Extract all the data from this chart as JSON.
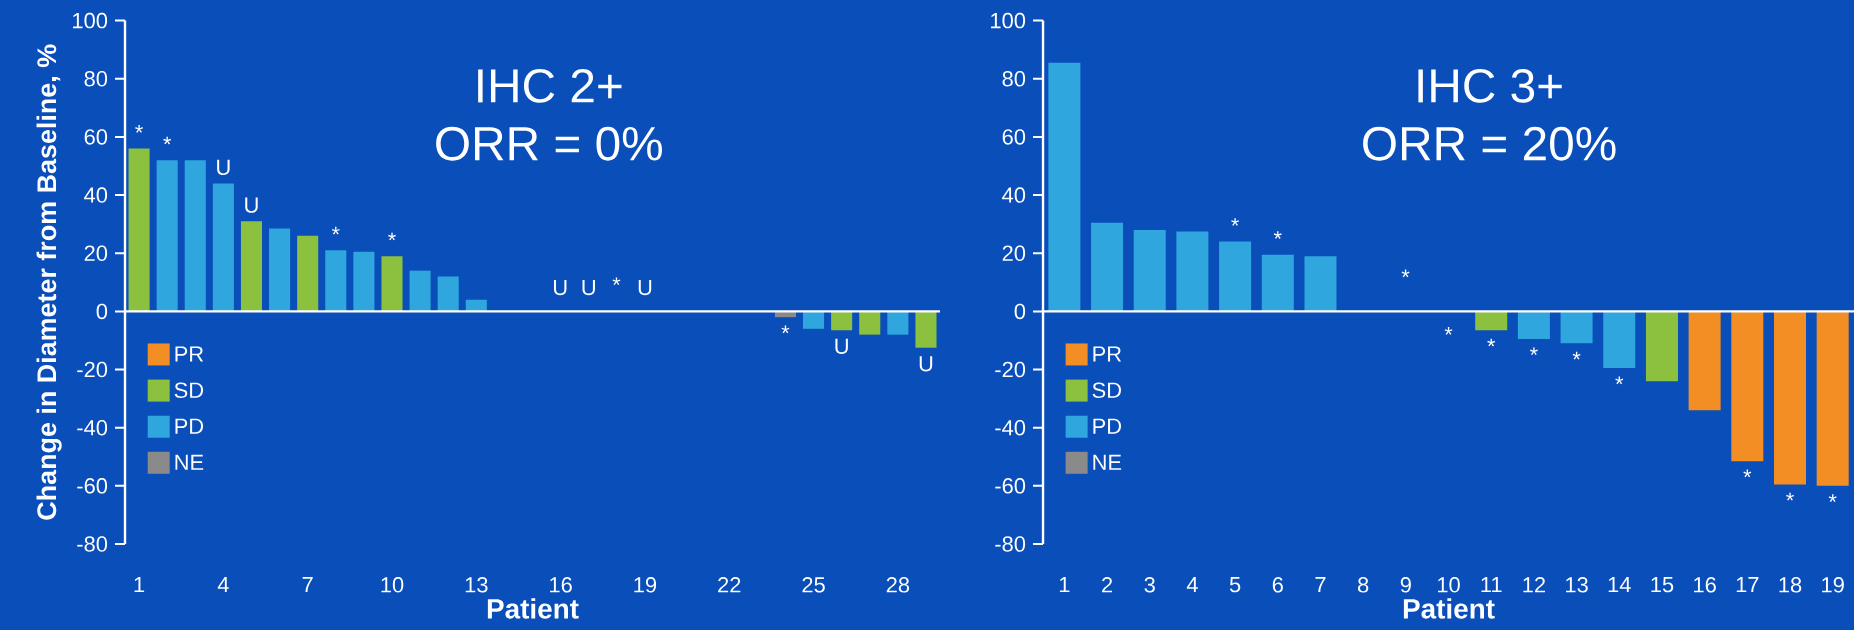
{
  "chart_data": [
    {
      "type": "bar",
      "title": "IHC 2+",
      "subtitle": "ORR = 0%",
      "xlabel": "Patient",
      "ylabel": "Change in Diameter from Baseline, %",
      "x": [
        1,
        2,
        3,
        4,
        5,
        6,
        7,
        8,
        9,
        10,
        11,
        12,
        13,
        14,
        15,
        16,
        17,
        18,
        19,
        20,
        21,
        22,
        23,
        24,
        25,
        26,
        27,
        28,
        29
      ],
      "xlim": [
        0.5,
        29.5
      ],
      "xticks": [
        1,
        4,
        7,
        10,
        13,
        16,
        19,
        22,
        25,
        28
      ],
      "ylim": [
        -80,
        100
      ],
      "yticks": [
        -80,
        -60,
        -40,
        -20,
        0,
        20,
        40,
        60,
        80,
        100
      ],
      "legend": "bottom left",
      "series": [
        {
          "name": "PR",
          "color": "#f28e24",
          "values": [
            null,
            null,
            null,
            null,
            null,
            null,
            null,
            null,
            null,
            null,
            null,
            null,
            null,
            null,
            null,
            null,
            null,
            null,
            null,
            null,
            null,
            null,
            null,
            null,
            null,
            null,
            null,
            null,
            null
          ]
        },
        {
          "name": "SD",
          "color": "#8bc13f",
          "values": [
            56,
            null,
            null,
            null,
            31,
            null,
            26,
            null,
            null,
            19,
            null,
            null,
            null,
            null,
            null,
            null,
            null,
            null,
            null,
            null,
            null,
            null,
            null,
            null,
            null,
            -6.5,
            -8,
            null,
            -12.5
          ]
        },
        {
          "name": "PD",
          "color": "#2fa6de",
          "values": [
            null,
            52,
            52,
            44,
            null,
            28.5,
            null,
            21,
            20.5,
            null,
            14,
            12,
            4,
            null,
            null,
            null,
            null,
            null,
            null,
            null,
            null,
            null,
            null,
            null,
            -6,
            null,
            null,
            -8,
            null
          ]
        },
        {
          "name": "NE",
          "color": "#8a8a8a",
          "values": [
            null,
            null,
            null,
            null,
            null,
            null,
            null,
            null,
            null,
            null,
            null,
            null,
            null,
            null,
            null,
            null,
            null,
            null,
            null,
            null,
            null,
            null,
            null,
            -2,
            null,
            null,
            null,
            null,
            null
          ]
        }
      ],
      "annotations": [
        {
          "text": "*",
          "x": 1,
          "y": 56
        },
        {
          "text": "*",
          "x": 2,
          "y": 52
        },
        {
          "text": "U",
          "x": 4,
          "y": 44
        },
        {
          "text": "U",
          "x": 5,
          "y": 31
        },
        {
          "text": "*",
          "x": 8,
          "y": 21
        },
        {
          "text": "*",
          "x": 10,
          "y": 19
        },
        "U",
        "U",
        "*",
        "U",
        {
          "text": "*",
          "x": 24,
          "y": -2
        },
        {
          "text": "U",
          "x": 26,
          "y": -6.5
        },
        {
          "text": "U",
          "x": 29,
          "y": -12.5
        }
      ]
    },
    {
      "type": "bar",
      "title": "IHC 3+",
      "subtitle": "ORR = 20%",
      "xlabel": "Patient",
      "x": [
        1,
        2,
        3,
        4,
        5,
        6,
        7,
        8,
        9,
        10,
        11,
        12,
        13,
        14,
        15,
        16,
        17,
        18,
        19
      ],
      "xlim": [
        0.5,
        19.5
      ],
      "xticks": [
        1,
        2,
        3,
        4,
        5,
        6,
        7,
        8,
        9,
        10,
        11,
        12,
        13,
        14,
        15,
        16,
        17,
        18,
        19
      ],
      "ylim": [
        -80,
        100
      ],
      "yticks": [
        -80,
        -60,
        -40,
        -20,
        0,
        20,
        40,
        60,
        80,
        100
      ],
      "legend": "bottom left",
      "series": [
        {
          "name": "PR",
          "color": "#f28e24",
          "values": [
            null,
            null,
            null,
            null,
            null,
            null,
            null,
            null,
            null,
            null,
            null,
            null,
            null,
            null,
            null,
            -34,
            -51.5,
            -59.5,
            -60
          ]
        },
        {
          "name": "SD",
          "color": "#8bc13f",
          "values": [
            null,
            null,
            null,
            null,
            null,
            null,
            null,
            null,
            null,
            null,
            -6.5,
            null,
            null,
            null,
            -24,
            null,
            null,
            null,
            null
          ]
        },
        {
          "name": "PD",
          "color": "#2fa6de",
          "values": [
            85.5,
            30.5,
            28,
            27.5,
            24,
            19.5,
            19,
            null,
            null,
            null,
            null,
            -9.5,
            -11,
            -19.5,
            null,
            null,
            null,
            null,
            null
          ]
        },
        {
          "name": "NE",
          "color": "#8a8a8a",
          "values": [
            null,
            null,
            null,
            null,
            null,
            null,
            null,
            null,
            null,
            null,
            null,
            null,
            null,
            null,
            null,
            null,
            null,
            null,
            null
          ]
        }
      ],
      "annotations": [
        {
          "text": "*",
          "x": 5,
          "y": 24
        },
        {
          "text": "*",
          "x": 6,
          "y": 19.5
        },
        "*",
        "*",
        {
          "text": "*",
          "x": 11,
          "y": -6.5
        },
        {
          "text": "*",
          "x": 12,
          "y": -9.5
        },
        {
          "text": "*",
          "x": 13,
          "y": -11
        },
        {
          "text": "*",
          "x": 14,
          "y": -19.5
        },
        {
          "text": "*",
          "x": 17,
          "y": -51.5
        },
        {
          "text": "*",
          "x": 18,
          "y": -59.5
        },
        {
          "text": "*",
          "x": 19,
          "y": -60
        }
      ]
    }
  ]
}
